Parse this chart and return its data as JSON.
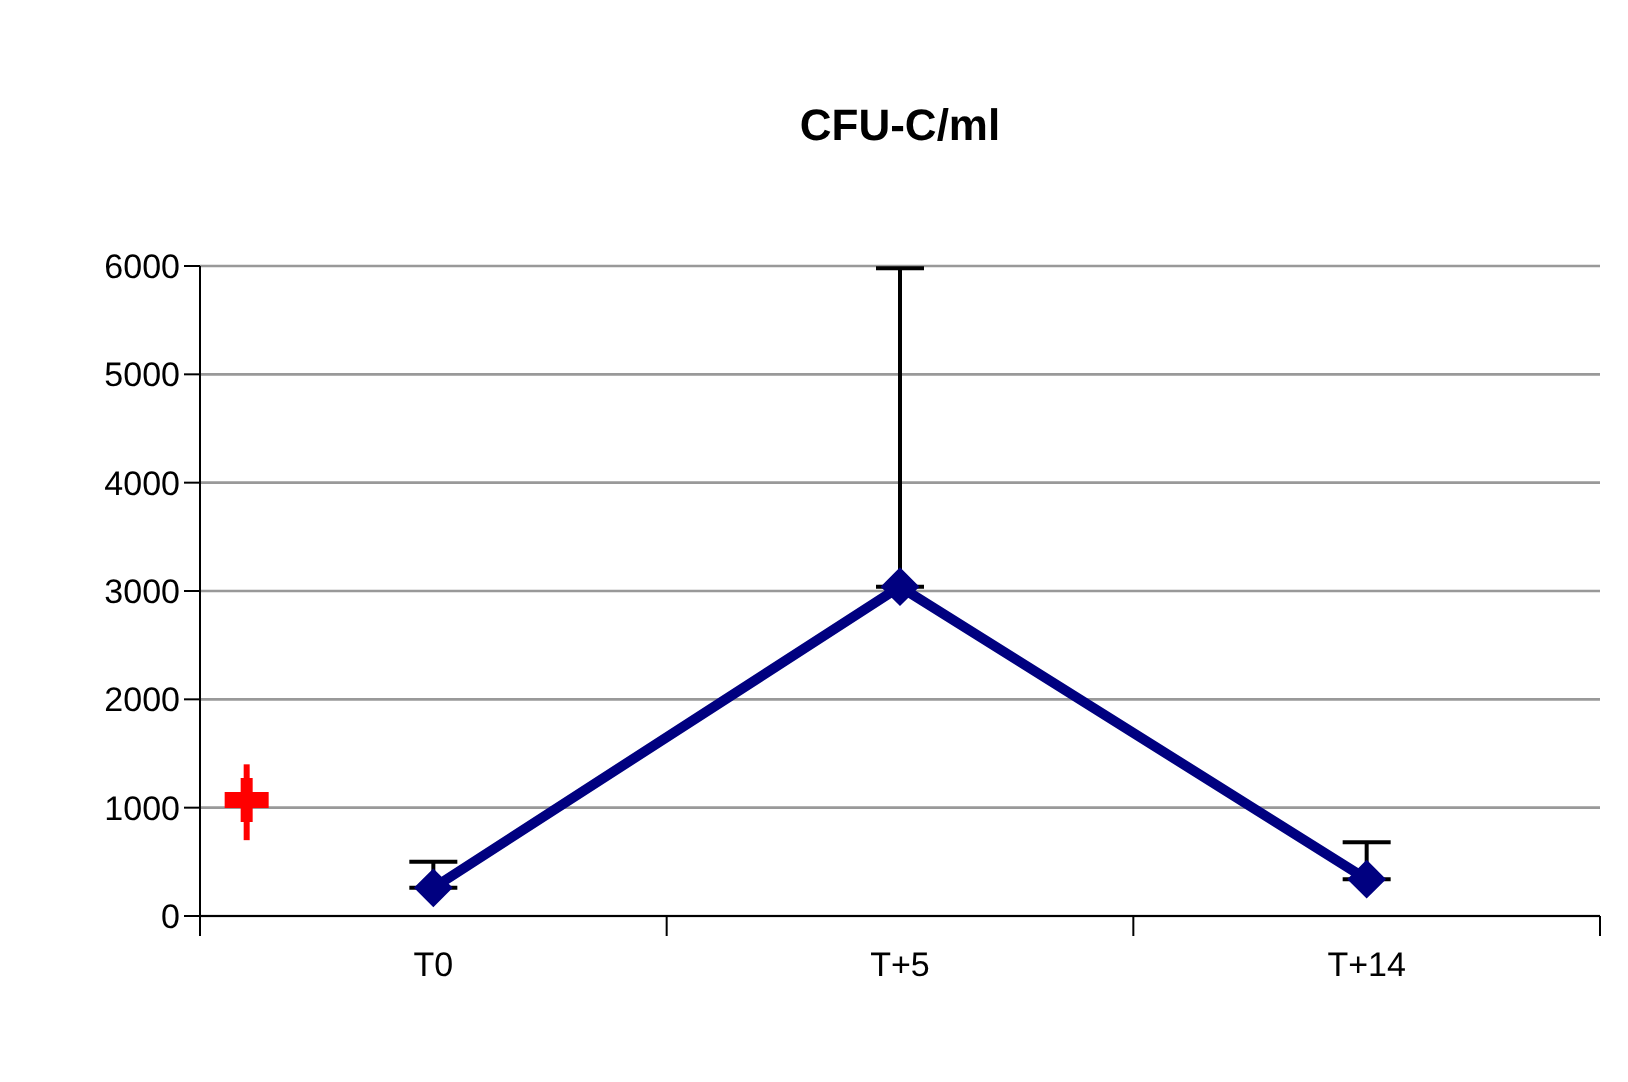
{
  "chart_data": {
    "type": "line",
    "title": "CFU-C/ml",
    "categories": [
      "T0",
      "T+5",
      "T+14"
    ],
    "series": [
      {
        "color": "#000080",
        "marker": "diamond",
        "values": [
          260,
          3040,
          340
        ],
        "errors": [
          [
            260,
            500
          ],
          [
            3040,
            5980
          ],
          [
            340,
            680
          ]
        ]
      },
      {
        "type": "scatter",
        "color": "#ff0000",
        "marker": "cross",
        "values": [
          1070,
          null,
          null
        ],
        "errors": [
          [
            700,
            1400
          ],
          null,
          null
        ]
      }
    ],
    "ylim": [
      0,
      6000
    ],
    "yticks": [
      0,
      1000,
      2000,
      3000,
      4000,
      5000,
      6000
    ],
    "grid": "y"
  }
}
